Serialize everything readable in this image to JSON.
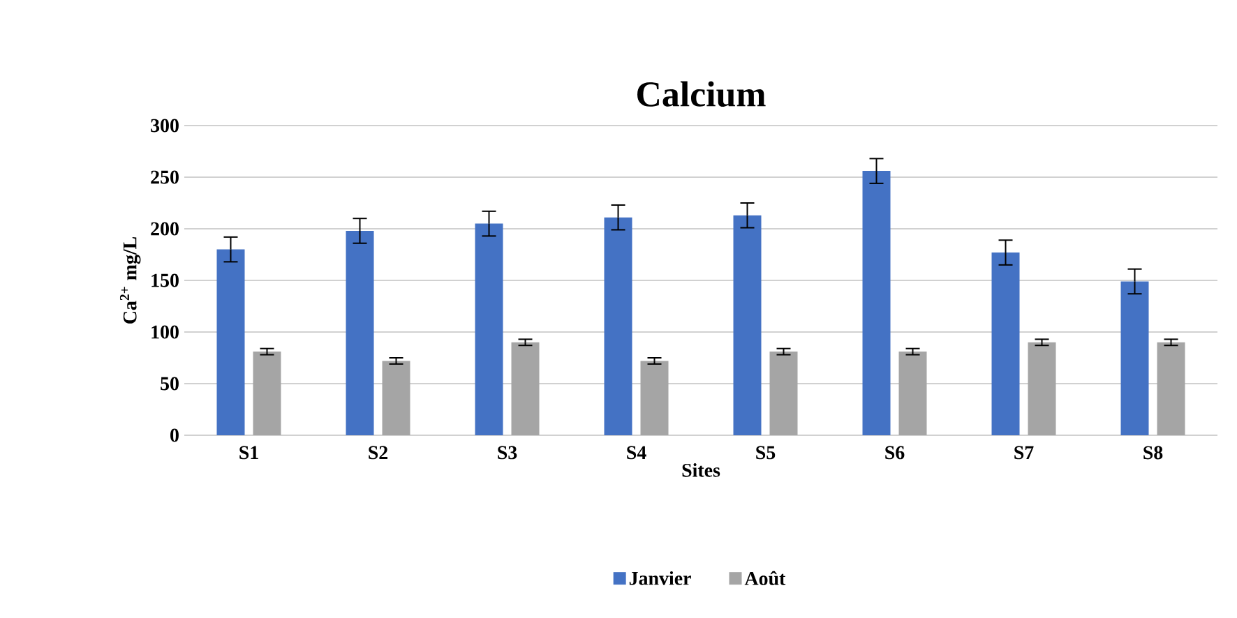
{
  "chart_data": {
    "type": "bar",
    "title": "Calcium",
    "xlabel": "Sites",
    "ylabel": "Ca$^{2+}$ mg/L",
    "categories": [
      "S1",
      "S2",
      "S3",
      "S4",
      "S5",
      "S6",
      "S7",
      "S8"
    ],
    "series": [
      {
        "name": "Janvier",
        "color": "#4472c4",
        "values": [
          180,
          198,
          205,
          211,
          213,
          256,
          177,
          149
        ],
        "errors": [
          12,
          12,
          12,
          12,
          12,
          12,
          12,
          12
        ]
      },
      {
        "name": "Août",
        "color": "#a5a5a5",
        "values": [
          81,
          72,
          90,
          72,
          81,
          81,
          90,
          90
        ],
        "errors": [
          3,
          3,
          3,
          3,
          3,
          3,
          3,
          3
        ]
      }
    ],
    "ylim": [
      0,
      300
    ],
    "yticks": [
      0,
      50,
      100,
      150,
      200,
      250,
      300
    ],
    "grid": "y",
    "legend": "bottom"
  }
}
